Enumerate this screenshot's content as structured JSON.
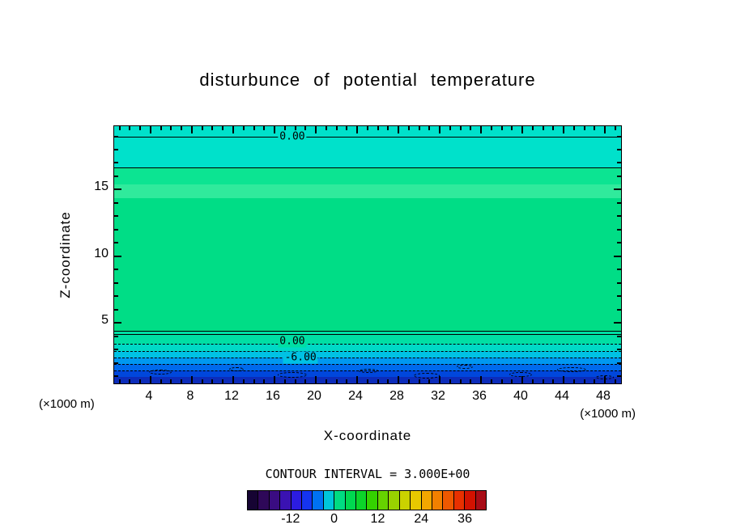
{
  "title": "disturbunce of potential temperature",
  "axes": {
    "y_label": "Z-coordinate",
    "x_label": "X-coordinate",
    "x_unit_left": "(×1000 m)",
    "x_unit_right": "(×1000 m)",
    "x_ticks": [
      4,
      8,
      12,
      16,
      20,
      24,
      28,
      32,
      36,
      40,
      44,
      48
    ],
    "y_ticks": [
      5,
      10,
      15
    ],
    "x_major_step": 4,
    "y_major_step": 5
  },
  "footer": {
    "contour_interval_text": "CONTOUR INTERVAL = 3.000E+00"
  },
  "colorbar": {
    "vmin": -24,
    "vmax": 42,
    "interval": 3,
    "tick_labels": [
      -12,
      0,
      12,
      24,
      36
    ],
    "colors": [
      "#160433",
      "#2e0859",
      "#3a0c82",
      "#3a12b2",
      "#2c1ce0",
      "#1534f0",
      "#0072f2",
      "#00c6da",
      "#00dc82",
      "#00d850",
      "#0cd42a",
      "#34d200",
      "#66d200",
      "#98d200",
      "#cad200",
      "#e8c800",
      "#f2a600",
      "#f28000",
      "#ee5800",
      "#e83000",
      "#d21200",
      "#a80c16"
    ]
  },
  "chart_data": {
    "type": "heatmap",
    "title": "disturbunce of potential temperature",
    "xlabel": "X-coordinate",
    "ylabel": "Z-coordinate",
    "x_unit": "(×1000 m)",
    "y_unit": "(×1000 m)",
    "xlim": [
      0.55,
      49.8
    ],
    "ylim": [
      0.27,
      19.7
    ],
    "contour_interval": 3.0,
    "description": "Filled contour field, horizontally uniform layers: cyan band aloft above a 0.00 contour, broad green (near-zero positive) interior, and a negative (blue) layer near the surface bounded by dashed contours down to -6.00 and below, with noisy dashed contours at the lowest levels",
    "bands": [
      {
        "z_top": 19.7,
        "z_bot": 16.6,
        "color": "#00e1cb"
      },
      {
        "z_top": 16.6,
        "z_bot": 15.3,
        "color": "#0ce492"
      },
      {
        "z_top": 15.3,
        "z_bot": 14.3,
        "color": "#30ea9c"
      },
      {
        "z_top": 14.3,
        "z_bot": 4.35,
        "color": "#00dd86"
      },
      {
        "z_top": 4.35,
        "z_bot": 3.35,
        "color": "#00dfa4"
      },
      {
        "z_top": 3.35,
        "z_bot": 2.85,
        "color": "#00d9c6"
      },
      {
        "z_top": 2.85,
        "z_bot": 2.35,
        "color": "#00c2e4"
      },
      {
        "z_top": 2.35,
        "z_bot": 1.85,
        "color": "#0098f0"
      },
      {
        "z_top": 1.85,
        "z_bot": 1.35,
        "color": "#006aec"
      },
      {
        "z_top": 1.35,
        "z_bot": 0.85,
        "color": "#0047dc"
      },
      {
        "z_top": 0.85,
        "z_bot": 0.27,
        "color": "#0c2cba"
      }
    ],
    "contour_lines": [
      {
        "z": 18.9,
        "style": "solid"
      },
      {
        "z": 16.6,
        "style": "solid"
      },
      {
        "z": 4.35,
        "style": "solid"
      },
      {
        "z": 4.1,
        "style": "solid"
      },
      {
        "z": 3.35,
        "style": "dashed"
      },
      {
        "z": 2.85,
        "style": "dashed"
      },
      {
        "z": 2.35,
        "style": "dashed"
      },
      {
        "z": 1.85,
        "style": "dashed"
      },
      {
        "z": 1.35,
        "style": "dashed"
      }
    ],
    "contour_labels": [
      {
        "text": "0.00",
        "x": 17.8,
        "z": 18.9,
        "bg": "#00e1cb"
      },
      {
        "text": "0.00",
        "x": 17.8,
        "z": 3.55,
        "bg": "#00dfa4"
      },
      {
        "text": "-6.00",
        "x": 18.6,
        "z": 2.35,
        "bg": "#00c2e4"
      }
    ],
    "noise_contours": [
      {
        "fx": 0.09,
        "fy": 0.95,
        "w": 28,
        "h": 6
      },
      {
        "fx": 0.24,
        "fy": 0.94,
        "w": 18,
        "h": 5
      },
      {
        "fx": 0.35,
        "fy": 0.96,
        "w": 36,
        "h": 7
      },
      {
        "fx": 0.5,
        "fy": 0.945,
        "w": 24,
        "h": 5
      },
      {
        "fx": 0.615,
        "fy": 0.965,
        "w": 32,
        "h": 7
      },
      {
        "fx": 0.69,
        "fy": 0.93,
        "w": 20,
        "h": 5
      },
      {
        "fx": 0.8,
        "fy": 0.96,
        "w": 28,
        "h": 6
      },
      {
        "fx": 0.9,
        "fy": 0.94,
        "w": 36,
        "h": 6
      },
      {
        "fx": 0.965,
        "fy": 0.97,
        "w": 22,
        "h": 5
      }
    ]
  }
}
